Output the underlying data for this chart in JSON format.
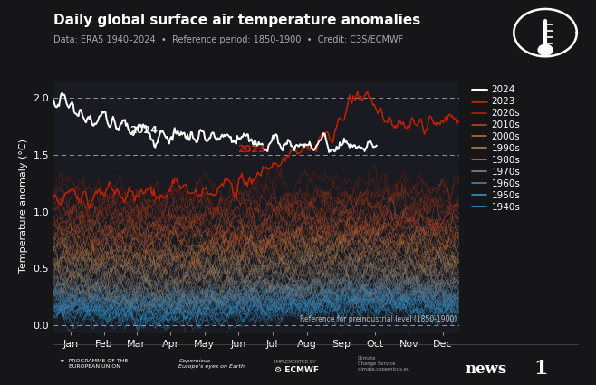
{
  "title": "Daily global surface air temperature anomalies",
  "subtitle": "Data: ERA5 1940–2024  •  Reference period: 1850-1900  •  Credit: C3S/ECMWF",
  "ylabel": "Temperature anomaly (°C)",
  "bg_color": "#161618",
  "plot_bg_color": "#1a1a22",
  "months": [
    "Jan",
    "Feb",
    "Mar",
    "Apr",
    "May",
    "Jun",
    "Jul",
    "Aug",
    "Sep",
    "Oct",
    "Nov",
    "Dec"
  ],
  "ylim": [
    -0.05,
    2.15
  ],
  "yticks": [
    0.0,
    0.5,
    1.0,
    1.5,
    2.0
  ],
  "dashed_lines": [
    0.0,
    1.5,
    2.0
  ],
  "ref_line_label": "Reference for preindustrial level (1850-1900)",
  "legend_entries": [
    "2024",
    "2023",
    "2020s",
    "2010s",
    "2000s",
    "1990s",
    "1980s",
    "1970s",
    "1960s",
    "1950s",
    "1940s"
  ],
  "decade_colors": {
    "2020s": "#9b2500",
    "2010s": "#b04020",
    "2000s": "#b86030",
    "1990s": "#a07850",
    "1980s": "#8a7868",
    "1970s": "#708080",
    "1960s": "#4878a0",
    "1950s": "#3888b8",
    "1940s": "#2890c8"
  },
  "color_2024": "#ffffff",
  "color_2023": "#cc2200",
  "title_fontsize": 11,
  "subtitle_fontsize": 7,
  "axis_label_fontsize": 8,
  "tick_fontsize": 8,
  "legend_fontsize": 7.5
}
